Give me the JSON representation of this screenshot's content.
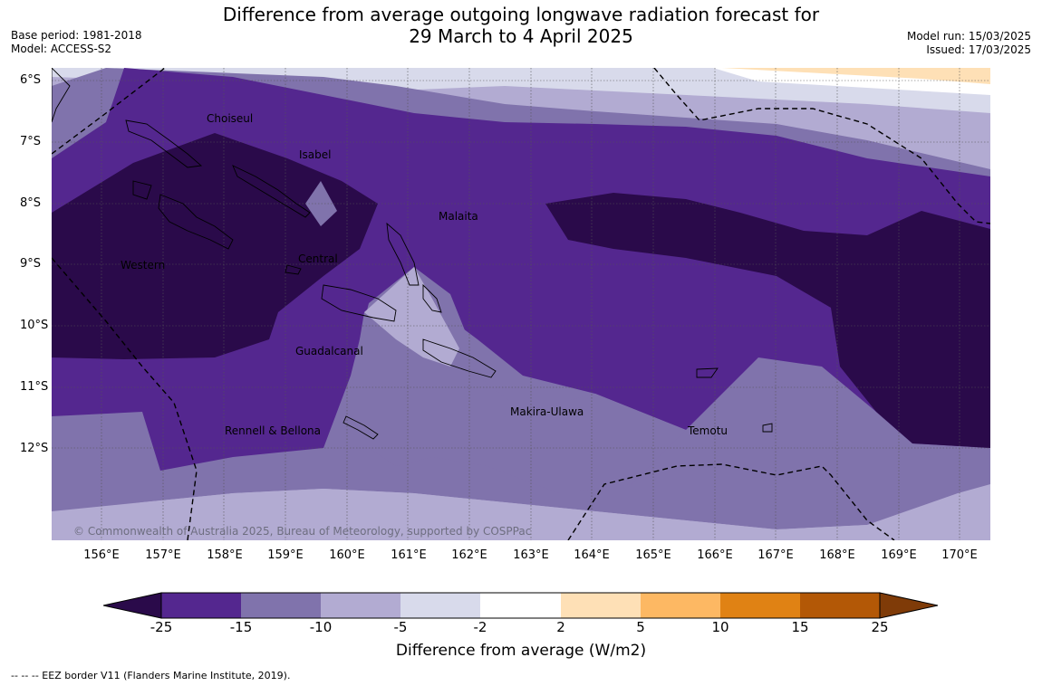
{
  "title_line1": "Difference from average outgoing longwave radiation forecast for",
  "title_line2": "29 March to 4 April 2025",
  "base_period": "Base period: 1981-2018",
  "model": "Model: ACCESS-S2",
  "model_run": "Model run: 15/03/2025",
  "issued": "Issued: 17/03/2025",
  "latitudes": [
    "6°S",
    "7°S",
    "8°S",
    "9°S",
    "10°S",
    "11°S",
    "12°S"
  ],
  "longitudes": [
    "156°E",
    "157°E",
    "158°E",
    "159°E",
    "160°E",
    "161°E",
    "162°E",
    "163°E",
    "164°E",
    "165°E",
    "166°E",
    "167°E",
    "168°E",
    "169°E",
    "170°E"
  ],
  "regions": [
    "Choiseul",
    "Isabel",
    "Malaita",
    "Western",
    "Central",
    "Guadalcanal",
    "Rennell & Bellona",
    "Makira-Ulawa",
    "Temotu"
  ],
  "copyright": "© Commonwealth of Australia 2025, Bureau of Meteorology, supported by COSPPac",
  "colorbar": {
    "ticks": [
      "-25",
      "-15",
      "-10",
      "-5",
      "-2",
      "2",
      "5",
      "10",
      "15",
      "25"
    ],
    "title": "Difference from average (W/m2)",
    "colors": [
      "#2a0a4a",
      "#54278f",
      "#8073ac",
      "#b2abd2",
      "#d8daeb",
      "#ffffff",
      "#fee0b6",
      "#fdb863",
      "#e08214",
      "#b35806",
      "#7f3b08"
    ]
  },
  "legend_footer": "-- -- -- EEZ border V11 (Flanders Marine Institute, 2019)."
}
